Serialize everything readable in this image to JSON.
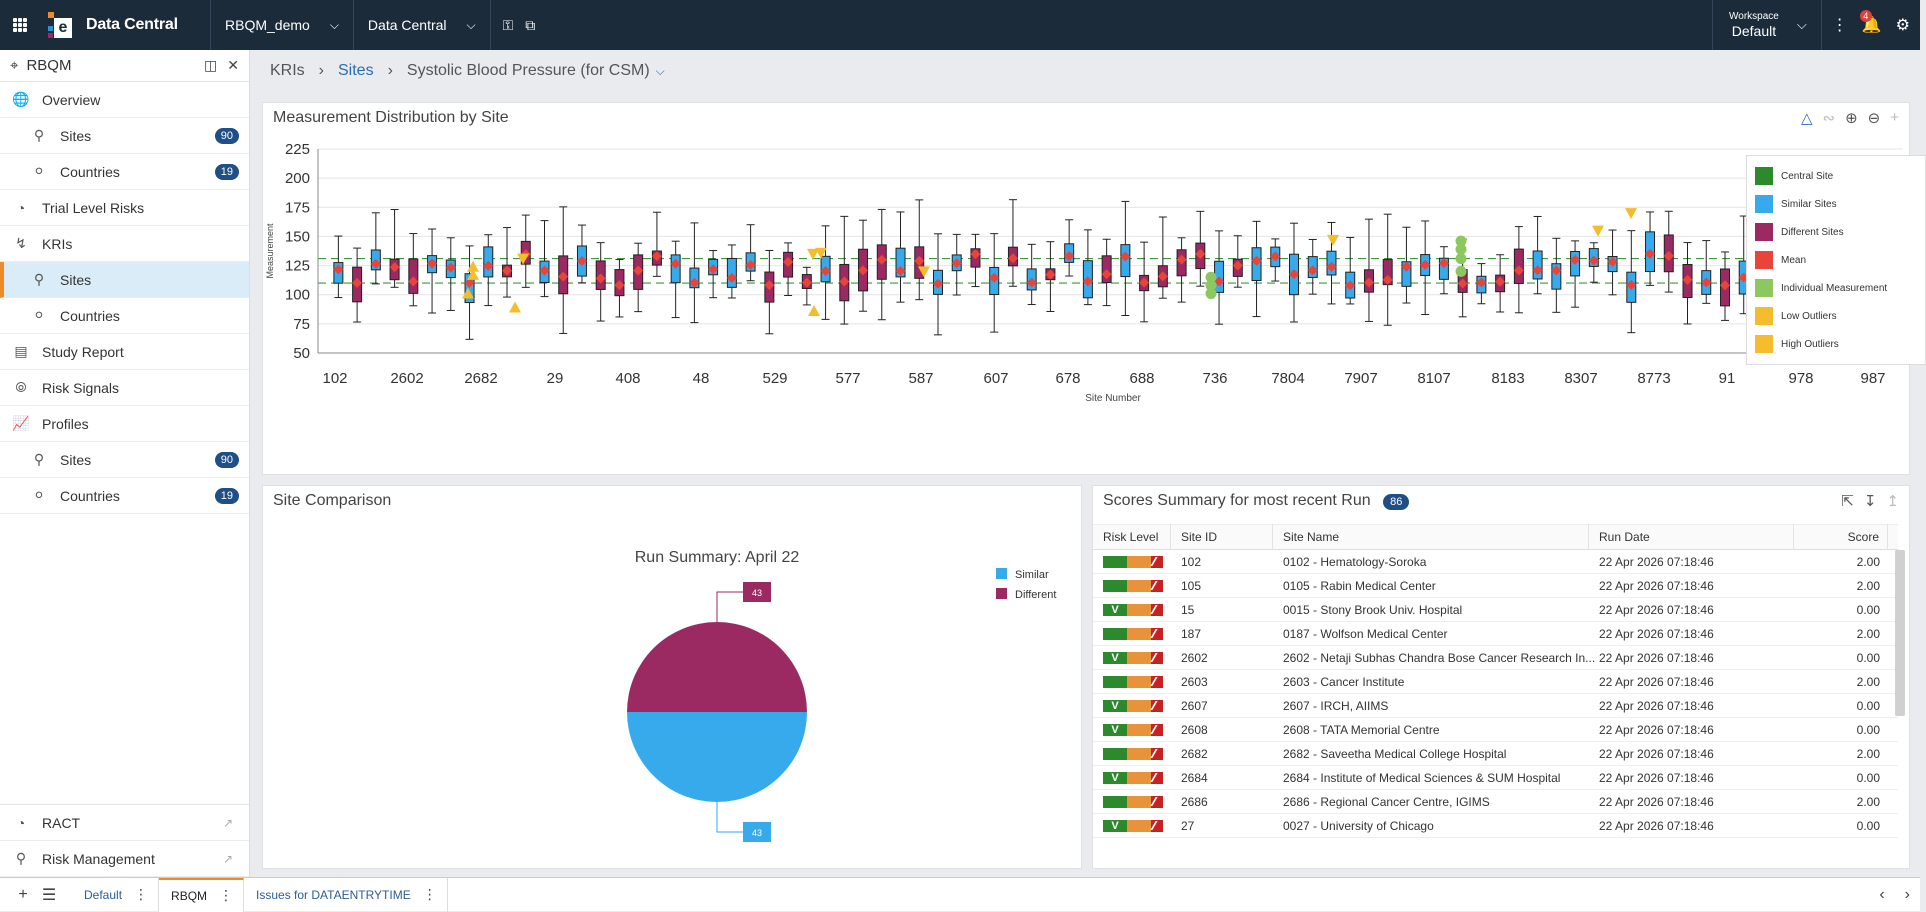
{
  "topbar": {
    "app_name": "Data Central",
    "study": "RBQM_demo",
    "module": "Data Central",
    "workspace_label": "Workspace",
    "workspace_value": "Default",
    "notifications": "4"
  },
  "sidebar": {
    "title": "RBQM",
    "items": [
      {
        "label": "Overview"
      },
      {
        "label": "Sites",
        "badge": "90"
      },
      {
        "label": "Countries",
        "badge": "19"
      },
      {
        "label": "Trial Level Risks"
      },
      {
        "label": "KRIs"
      },
      {
        "label": "Sites"
      },
      {
        "label": "Countries"
      },
      {
        "label": "Study Report"
      },
      {
        "label": "Risk Signals"
      },
      {
        "label": "Profiles"
      },
      {
        "label": "Sites",
        "badge": "90"
      },
      {
        "label": "Countries",
        "badge": "19"
      }
    ],
    "bottom": [
      {
        "label": "RACT"
      },
      {
        "label": "Risk Management"
      }
    ]
  },
  "breadcrumb": {
    "a": "KRIs",
    "b": "Sites",
    "c": "Systolic Blood Pressure (for CSM)"
  },
  "boxplot": {
    "title": "Measurement Distribution by Site",
    "ylabel": "Measurement",
    "xlabel": "Site Number",
    "yticks": [
      "225",
      "200",
      "175",
      "150",
      "125",
      "100",
      "75",
      "50"
    ],
    "xticks": [
      "102",
      "2602",
      "2682",
      "29",
      "408",
      "48",
      "529",
      "577",
      "587",
      "607",
      "678",
      "688",
      "736",
      "7804",
      "7907",
      "8107",
      "8183",
      "8307",
      "8773",
      "91",
      "978",
      "987"
    ],
    "legend": [
      {
        "label": "Central Site",
        "color": "#2c8a2c"
      },
      {
        "label": "Similar Sites",
        "color": "#36aaea"
      },
      {
        "label": "Different Sites",
        "color": "#9b2a63"
      },
      {
        "label": "Mean",
        "color": "#e8443a"
      },
      {
        "label": "Individual Measurement",
        "color": "#8cc760"
      },
      {
        "label": "Low Outliers",
        "color": "#f5bd2e"
      },
      {
        "label": "High Outliers",
        "color": "#f5bd2e"
      }
    ]
  },
  "comparison": {
    "title": "Site Comparison",
    "chart_title": "Run Summary: April 22",
    "legend": [
      {
        "label": "Similar",
        "color": "#36aaea"
      },
      {
        "label": "Different",
        "color": "#9b2a63"
      }
    ],
    "different_count": "43",
    "similar_count": "43"
  },
  "chart_data": {
    "type": "pie",
    "title": "Run Summary: April 22",
    "categories": [
      "Different",
      "Similar"
    ],
    "values": [
      43,
      43
    ]
  },
  "scores": {
    "title": "Scores Summary for most recent Run",
    "count": "86",
    "columns": [
      "Risk Level",
      "Site ID",
      "Site Name",
      "Run Date",
      "Score"
    ],
    "rows": [
      {
        "level": "r",
        "id": "102",
        "name": "0102 - Hematology-Soroka",
        "date": "22 Apr 2026 07:18:46",
        "score": "2.00"
      },
      {
        "level": "r",
        "id": "105",
        "name": "0105 - Rabin Medical Center",
        "date": "22 Apr 2026 07:18:46",
        "score": "2.00"
      },
      {
        "level": "g",
        "id": "15",
        "name": "0015 - Stony Brook Univ. Hospital",
        "date": "22 Apr 2026 07:18:46",
        "score": "0.00"
      },
      {
        "level": "r",
        "id": "187",
        "name": "0187 - Wolfson Medical Center",
        "date": "22 Apr 2026 07:18:46",
        "score": "2.00"
      },
      {
        "level": "g",
        "id": "2602",
        "name": "2602 - Netaji Subhas Chandra Bose Cancer Research In...",
        "date": "22 Apr 2026 07:18:46",
        "score": "0.00"
      },
      {
        "level": "r",
        "id": "2603",
        "name": "2603 - Cancer Institute",
        "date": "22 Apr 2026 07:18:46",
        "score": "2.00"
      },
      {
        "level": "g",
        "id": "2607",
        "name": "2607 - IRCH, AIIMS",
        "date": "22 Apr 2026 07:18:46",
        "score": "0.00"
      },
      {
        "level": "g",
        "id": "2608",
        "name": "2608 - TATA Memorial Centre",
        "date": "22 Apr 2026 07:18:46",
        "score": "0.00"
      },
      {
        "level": "r",
        "id": "2682",
        "name": "2682 - Saveetha Medical College Hospital",
        "date": "22 Apr 2026 07:18:46",
        "score": "2.00"
      },
      {
        "level": "g",
        "id": "2684",
        "name": "2684 - Institute of Medical Sciences & SUM Hospital",
        "date": "22 Apr 2026 07:18:46",
        "score": "0.00"
      },
      {
        "level": "r",
        "id": "2686",
        "name": "2686 - Regional Cancer Centre, IGIMS",
        "date": "22 Apr 2026 07:18:46",
        "score": "2.00"
      },
      {
        "level": "g",
        "id": "27",
        "name": "0027 - University of Chicago",
        "date": "22 Apr 2026 07:18:46",
        "score": "0.00"
      }
    ]
  },
  "tabs": [
    {
      "label": "Default"
    },
    {
      "label": "RBQM"
    },
    {
      "label": "Issues for DATAENTRYTIME"
    }
  ]
}
